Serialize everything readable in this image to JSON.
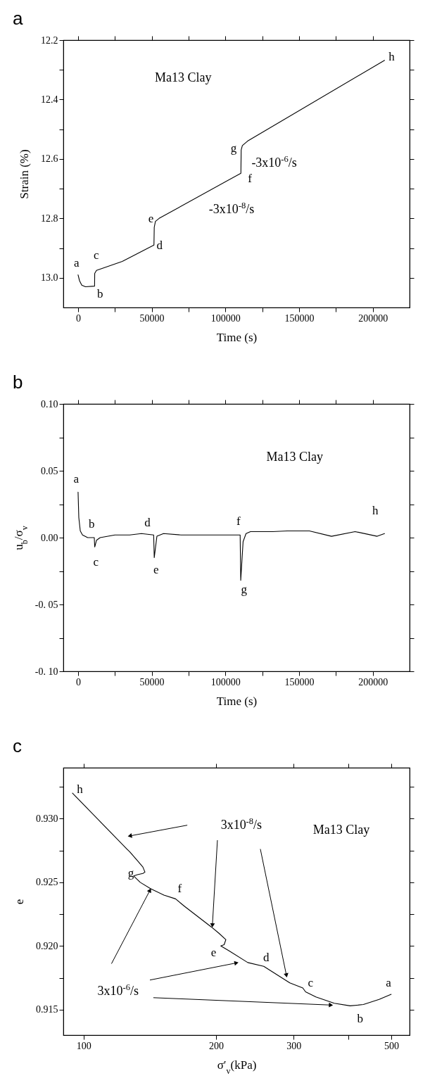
{
  "chart_data": [
    {
      "type": "line",
      "title": "a",
      "xlabel": "Time (s)",
      "ylabel": "Strain (%)",
      "xlim": [
        -10000,
        225000
      ],
      "ylim": [
        13.1,
        12.2
      ],
      "xticks": [
        0,
        {
          "value": 25000,
          "label": null
        },
        50000,
        {
          "value": 75000,
          "label": null
        },
        100000,
        {
          "value": 125000,
          "label": null
        },
        150000,
        {
          "value": 175000,
          "label": null
        },
        200000
      ],
      "yticks": [
        12.2,
        {
          "value": 12.3,
          "label": null
        },
        12.4,
        {
          "value": 12.5,
          "label": null
        },
        12.6,
        {
          "value": 12.7,
          "label": null
        },
        12.8,
        {
          "value": 12.9,
          "label": null
        },
        {
          "value": 13,
          "label": "13.0"
        }
      ],
      "series": [
        {
          "color": "#000000",
          "x": [
            0,
            1000,
            2500,
            5000,
            11200,
            11300,
            12500,
            30000,
            51500,
            51700,
            52500,
            55000,
            110500,
            110700,
            111500,
            115000,
            208000
          ],
          "values": [
            12.99,
            13.01,
            13.025,
            13.03,
            13.028,
            12.985,
            12.975,
            12.945,
            12.89,
            12.83,
            12.81,
            12.8,
            12.648,
            12.57,
            12.555,
            12.54,
            12.268
          ]
        }
      ],
      "annotations": [
        "a",
        "b",
        "c",
        "d",
        "e",
        "f",
        "g",
        "h",
        "Ma13 Clay",
        "-3x10$^{-6}$/s",
        "-3x10$^{-8}$/s"
      ]
    },
    {
      "type": "line",
      "title": "b",
      "xlabel": "Time (s)",
      "ylabel": "u$_{b}$/σ$_{v}$",
      "xlim": [
        -10000,
        225000
      ],
      "ylim": [
        -0.1,
        0.1
      ],
      "xticks": [
        0,
        {
          "value": 25000,
          "label": null
        },
        50000,
        {
          "value": 75000,
          "label": null
        },
        100000,
        {
          "value": 125000,
          "label": null
        },
        150000,
        {
          "value": 175000,
          "label": null
        },
        200000
      ],
      "yticks": [
        {
          "value": -0.1,
          "label": "-0. 10"
        },
        {
          "value": -0.075,
          "label": null
        },
        {
          "value": -0.05,
          "label": "-0. 05"
        },
        {
          "value": -0.025,
          "label": null
        },
        {
          "value": 0,
          "label": "0.00"
        },
        {
          "value": 0.025,
          "label": null
        },
        0.05,
        {
          "value": 0.075,
          "label": null
        },
        {
          "value": 0.1,
          "label": "0.10"
        }
      ],
      "series": [
        {
          "color": "#000000",
          "x": [
            0,
            500,
            1500,
            3000,
            6500,
            11000,
            11300,
            12500,
            15000,
            25000,
            35000,
            43000,
            51300,
            51700,
            53500,
            58000,
            70000,
            85000,
            110000,
            110400,
            112000,
            114000,
            117000,
            132000,
            142000,
            157000,
            172000,
            188000,
            203000,
            208000
          ],
          "values": [
            0.034,
            0.015,
            0.005,
            0.002,
            0.0,
            0.0,
            -0.007,
            -0.002,
            0.0,
            0.002,
            0.002,
            0.003,
            0.002,
            -0.015,
            0.001,
            0.003,
            0.002,
            0.002,
            0.002,
            -0.032,
            -0.003,
            0.003,
            0.0045,
            0.0045,
            0.005,
            0.005,
            0.001,
            0.0045,
            0.001,
            0.003
          ]
        }
      ],
      "annotations": [
        "a",
        "b",
        "c",
        "d",
        "e",
        "f",
        "g",
        "h",
        "Ma13 Clay"
      ]
    },
    {
      "type": "line",
      "title": "c",
      "xlabel": "σ′$_{v}$(kPa)",
      "ylabel": "e",
      "log": "x",
      "xlim": [
        90,
        550
      ],
      "ylim": [
        0.913,
        0.934
      ],
      "xticks": [
        100,
        200,
        300,
        {
          "value": 400,
          "label": null
        },
        500
      ],
      "yticks": [
        0.915,
        {
          "value": 0.9175,
          "label": null
        },
        {
          "value": 0.92,
          "label": "0.920"
        },
        {
          "value": 0.9225,
          "label": null
        },
        0.925,
        {
          "value": 0.9275,
          "label": null
        },
        {
          "value": 0.93,
          "label": "0.930"
        },
        {
          "value": 0.9325,
          "label": null
        }
      ],
      "series": [
        {
          "color": "#000000",
          "x": [
            94.4,
            125.6,
            127.3,
            132.6,
            136.4,
            137.9,
            136.4,
            132.6,
            130,
            134.5,
            142.1,
            152.2,
            161.8,
            169.8,
            195,
            203,
            210.5,
            208.6,
            205,
            214.4,
            236,
            256.6,
            294,
            314.7,
            319.3,
            337,
            371,
            403,
            432,
            469,
            499.5
          ],
          "values": [
            0.932,
            0.9276,
            0.9274,
            0.9267,
            0.9262,
            0.9258,
            0.9257,
            0.9256,
            0.9255,
            0.925,
            0.9245,
            0.924,
            0.9237,
            0.9231,
            0.9215,
            0.921,
            0.9205,
            0.9201,
            0.92,
            0.9196,
            0.9187,
            0.9184,
            0.9171,
            0.9167,
            0.9164,
            0.916,
            0.9155,
            0.9153,
            0.9154,
            0.9158,
            0.9162
          ]
        }
      ],
      "annotations": [
        "h",
        "g",
        "f",
        "e",
        "d",
        "c",
        "a",
        "b",
        "Ma13 Clay",
        {
          "text": "3x10$^{-8}$/s",
          "x": 196,
          "y": 0.9214
        },
        "3x10$^{-6}$/s"
      ]
    }
  ]
}
